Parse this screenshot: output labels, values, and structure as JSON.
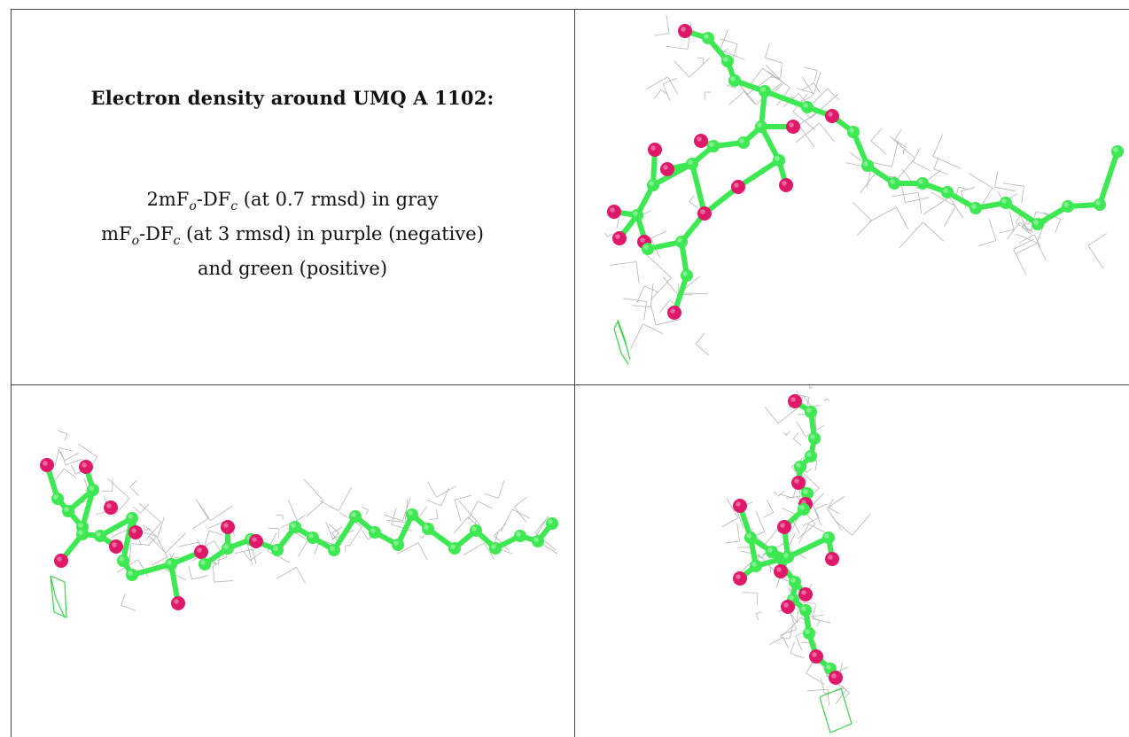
{
  "title": "Electron density around UMQ A 1102:",
  "legend_lines": [
    {
      "prefix": "2mF",
      "sub1": "o",
      "mid": "-DF",
      "sub2": "c",
      "rest": " (at 0.7 rmsd) in gray"
    },
    {
      "prefix": "mF",
      "sub1": "o",
      "mid": "-DF",
      "sub2": "c",
      "rest": " (at 3 rmsd) in purple (negative)"
    },
    {
      "plain": "and green (positive)"
    }
  ],
  "views": [
    {
      "name": "view-top-right",
      "orientation": "front"
    },
    {
      "name": "view-bottom-left",
      "orientation": "side"
    },
    {
      "name": "view-bottom-right",
      "orientation": "end-on"
    }
  ],
  "colors": {
    "carbon": "#3de852",
    "oxygen": "#e0186a",
    "density_mesh": "#b4b4b4",
    "positive_mesh": "#3ad24a",
    "border": "#444444"
  }
}
